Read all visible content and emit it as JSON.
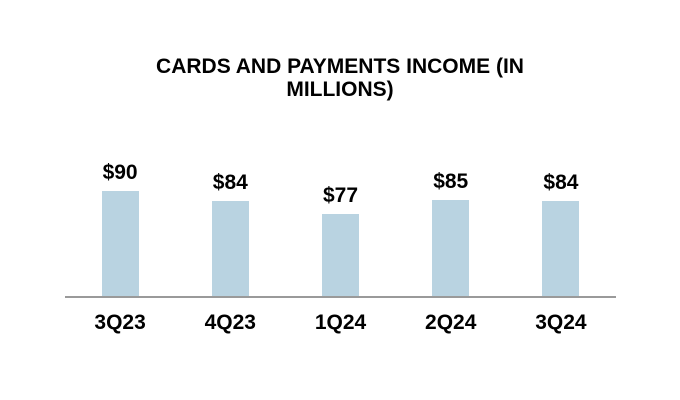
{
  "chart_data": {
    "type": "bar",
    "title": "CARDS AND PAYMENTS INCOME (IN MILLIONS)",
    "categories": [
      "3Q23",
      "4Q23",
      "1Q24",
      "2Q24",
      "3Q24"
    ],
    "values": [
      90,
      84,
      77,
      85,
      84
    ],
    "value_labels": [
      "$90",
      "$84",
      "$77",
      "$85",
      "$84"
    ],
    "xlabel": "",
    "ylabel": "",
    "ylim": [
      30,
      95
    ],
    "grid": false,
    "legend": false,
    "colors": {
      "bar_fill": "#b9d3e1",
      "axis_line": "#9a9a9a",
      "text": "#000000",
      "background": "#ffffff"
    }
  }
}
